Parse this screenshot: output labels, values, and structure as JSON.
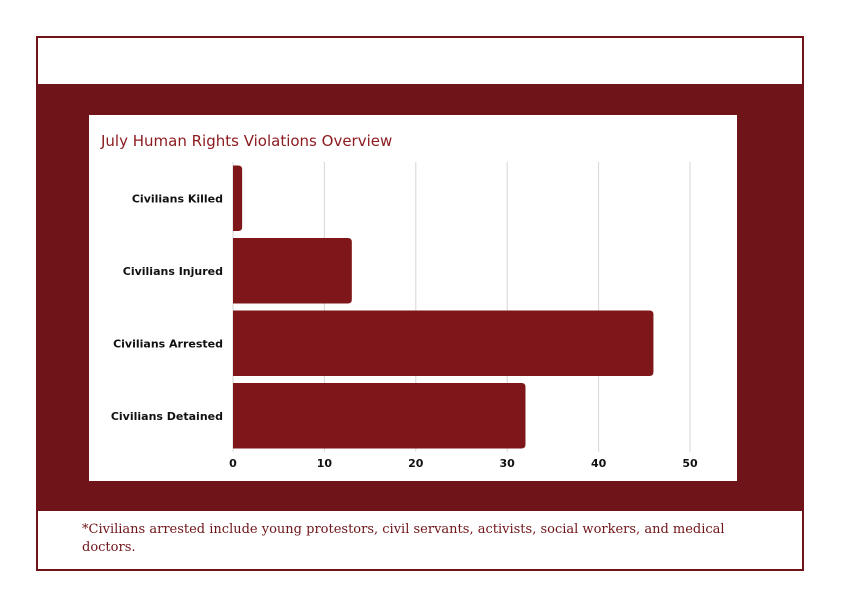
{
  "chart_data": {
    "type": "bar",
    "orientation": "horizontal",
    "title": "July Human Rights Violations Overview",
    "categories": [
      "Civilians Killed",
      "Civilians Injured",
      "Civilians Arrested",
      "Civilians Detained"
    ],
    "values": [
      1,
      13,
      46,
      32
    ],
    "xlim": [
      0,
      50
    ],
    "xticks": [
      0,
      10,
      20,
      30,
      40,
      50
    ],
    "grid": "vertical",
    "bar_color": "#7f1619"
  },
  "footnote": "*Civilians arrested include young protestors, civil servants, activists, social workers, and medical doctors.",
  "colors": {
    "band": "#6f1418",
    "frame": "#6f1418",
    "title": "#8b1a1e"
  }
}
